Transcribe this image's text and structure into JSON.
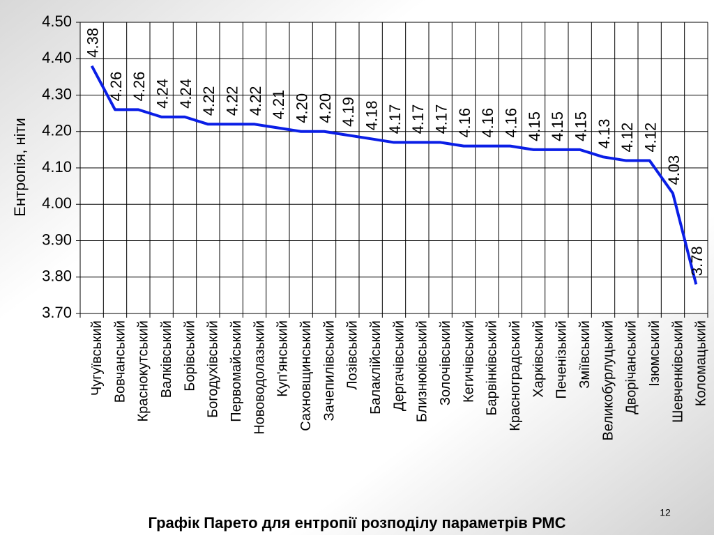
{
  "chart_data": {
    "type": "line",
    "title": "Графік Парето для ентропії розподілу параметрів РМС",
    "ylabel": "Ентропія, ніти",
    "page_number": "12",
    "categories": [
      "Чугуївський",
      "Вовчанський",
      "Краснокутський",
      "Валківський",
      "Борівський",
      "Богодухівський",
      "Первомайський",
      "Нововодолазький",
      "Куп'янський",
      "Сахновщинський",
      "Зачепилівський",
      "Лозівський",
      "Балаклійський",
      "Дергачівський",
      "Близнюківський",
      "Золочівський",
      "Кегичівський",
      "Барвінківський",
      "Красноградський",
      "Харківський",
      "Печенізький",
      "Зміївський",
      "Великобурлуцький",
      "Дворічанський",
      "Ізюмський",
      "Шевченківський",
      "Коломацький"
    ],
    "series": [
      {
        "name": "Ентропія",
        "color": "#0a1ee6",
        "values": [
          4.38,
          4.26,
          4.26,
          4.24,
          4.24,
          4.22,
          4.22,
          4.22,
          4.21,
          4.2,
          4.2,
          4.19,
          4.18,
          4.17,
          4.17,
          4.17,
          4.16,
          4.16,
          4.16,
          4.15,
          4.15,
          4.15,
          4.13,
          4.12,
          4.12,
          4.03,
          3.78
        ],
        "value_labels": [
          "4.38",
          "4.26",
          "4.26",
          "4.24",
          "4.24",
          "4.22",
          "4.22",
          "4.22",
          "4.21",
          "4.20",
          "4.20",
          "4.19",
          "4.18",
          "4.17",
          "4.17",
          "4.17",
          "4.16",
          "4.16",
          "4.16",
          "4.15",
          "4.15",
          "4.15",
          "4.13",
          "4.12",
          "4.12",
          "4.03",
          "3.78"
        ]
      }
    ],
    "ylim": [
      3.7,
      4.5
    ],
    "yticks": [
      {
        "value": 3.7,
        "label": "3.70"
      },
      {
        "value": 3.8,
        "label": "3.80"
      },
      {
        "value": 3.9,
        "label": "3.90"
      },
      {
        "value": 4.0,
        "label": "4.00"
      },
      {
        "value": 4.1,
        "label": "4.10"
      },
      {
        "value": 4.2,
        "label": "4.20"
      },
      {
        "value": 4.3,
        "label": "4.30"
      },
      {
        "value": 4.4,
        "label": "4.40"
      },
      {
        "value": 4.5,
        "label": "4.50"
      }
    ],
    "grid": true
  }
}
